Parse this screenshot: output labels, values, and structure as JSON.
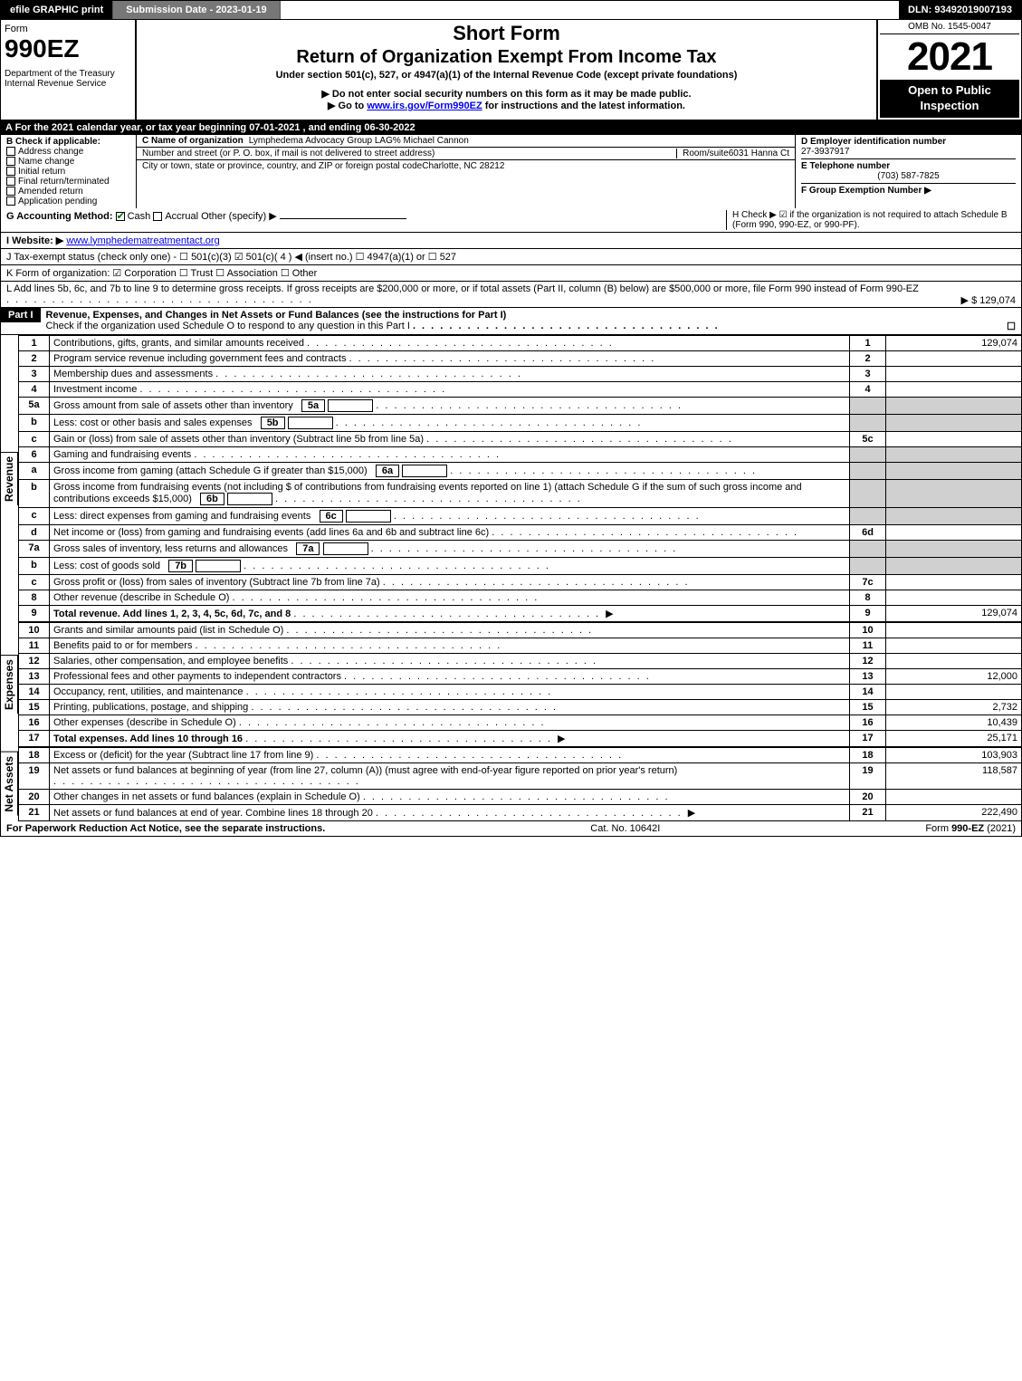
{
  "topbar": {
    "efile": "efile GRAPHIC print",
    "submission": "Submission Date - 2023-01-19",
    "dln": "DLN: 93492019007193"
  },
  "header": {
    "form_label": "Form",
    "form_number": "990EZ",
    "dept": "Department of the Treasury\nInternal Revenue Service",
    "title1": "Short Form",
    "title2": "Return of Organization Exempt From Income Tax",
    "subtitle": "Under section 501(c), 527, or 4947(a)(1) of the Internal Revenue Code (except private foundations)",
    "warn": "▶ Do not enter social security numbers on this form as it may be made public.",
    "goto_pre": "▶ Go to ",
    "goto_link": "www.irs.gov/Form990EZ",
    "goto_post": " for instructions and the latest information.",
    "omb": "OMB No. 1545-0047",
    "year": "2021",
    "inspection": "Open to Public Inspection"
  },
  "lineA": "A  For the 2021 calendar year, or tax year beginning 07-01-2021 , and ending 06-30-2022",
  "boxB": {
    "title": "B  Check if applicable:",
    "items": [
      "Address change",
      "Name change",
      "Initial return",
      "Final return/terminated",
      "Amended return",
      "Application pending"
    ]
  },
  "boxC": {
    "name_lbl": "C Name of organization",
    "name": "Lymphedema Advocacy Group LAG",
    "co": "% Michael Cannon",
    "street_lbl": "Number and street (or P. O. box, if mail is not delivered to street address)",
    "room_lbl": "Room/suite",
    "street": "6031 Hanna Ct",
    "city_lbl": "City or town, state or province, country, and ZIP or foreign postal code",
    "city": "Charlotte, NC  28212"
  },
  "boxD": {
    "ein_lbl": "D Employer identification number",
    "ein": "27-3937917",
    "phone_lbl": "E Telephone number",
    "phone": "(703) 587-7825",
    "group_lbl": "F Group Exemption Number  ▶"
  },
  "lineG": {
    "label": "G Accounting Method:",
    "cash": "Cash",
    "accrual": "Accrual",
    "other": "Other (specify) ▶"
  },
  "lineH": "H  Check ▶ ☑ if the organization is not required to attach Schedule B (Form 990, 990-EZ, or 990-PF).",
  "lineI": {
    "label": "I Website: ▶",
    "site": "www.lymphedematreatmentact.org"
  },
  "lineJ": "J Tax-exempt status (check only one) - ☐ 501(c)(3)  ☑ 501(c)( 4 ) ◀ (insert no.)  ☐ 4947(a)(1) or  ☐ 527",
  "lineK": "K Form of organization:  ☑ Corporation  ☐ Trust  ☐ Association  ☐ Other",
  "lineL": {
    "text": "L Add lines 5b, 6c, and 7b to line 9 to determine gross receipts. If gross receipts are $200,000 or more, or if total assets (Part II, column (B) below) are $500,000 or more, file Form 990 instead of Form 990-EZ",
    "amount": "▶ $ 129,074"
  },
  "partI": {
    "label": "Part I",
    "title": "Revenue, Expenses, and Changes in Net Assets or Fund Balances (see the instructions for Part I)",
    "check": "Check if the organization used Schedule O to respond to any question in this Part I",
    "check_val": "☐"
  },
  "sections": {
    "revenue": "Revenue",
    "expenses": "Expenses",
    "netassets": "Net Assets"
  },
  "rows": [
    {
      "n": "1",
      "d": "Contributions, gifts, grants, and similar amounts received",
      "k": "1",
      "v": "129,074"
    },
    {
      "n": "2",
      "d": "Program service revenue including government fees and contracts",
      "k": "2",
      "v": ""
    },
    {
      "n": "3",
      "d": "Membership dues and assessments",
      "k": "3",
      "v": ""
    },
    {
      "n": "4",
      "d": "Investment income",
      "k": "4",
      "v": ""
    },
    {
      "n": "5a",
      "d": "Gross amount from sale of assets other than inventory",
      "sub": "5a",
      "k": "",
      "v": "",
      "shadeKV": true
    },
    {
      "n": "b",
      "d": "Less: cost or other basis and sales expenses",
      "sub": "5b",
      "k": "",
      "v": "",
      "shadeKV": true
    },
    {
      "n": "c",
      "d": "Gain or (loss) from sale of assets other than inventory (Subtract line 5b from line 5a)",
      "k": "5c",
      "v": ""
    },
    {
      "n": "6",
      "d": "Gaming and fundraising events",
      "k": "",
      "v": "",
      "shadeKV": true,
      "noKV": true
    },
    {
      "n": "a",
      "d": "Gross income from gaming (attach Schedule G if greater than $15,000)",
      "sub": "6a",
      "k": "",
      "v": "",
      "shadeKV": true
    },
    {
      "n": "b",
      "d": "Gross income from fundraising events (not including $                    of contributions from fundraising events reported on line 1) (attach Schedule G if the sum of such gross income and contributions exceeds $15,000)",
      "sub": "6b",
      "k": "",
      "v": "",
      "shadeKV": true
    },
    {
      "n": "c",
      "d": "Less: direct expenses from gaming and fundraising events",
      "sub": "6c",
      "k": "",
      "v": "",
      "shadeKV": true
    },
    {
      "n": "d",
      "d": "Net income or (loss) from gaming and fundraising events (add lines 6a and 6b and subtract line 6c)",
      "k": "6d",
      "v": ""
    },
    {
      "n": "7a",
      "d": "Gross sales of inventory, less returns and allowances",
      "sub": "7a",
      "k": "",
      "v": "",
      "shadeKV": true
    },
    {
      "n": "b",
      "d": "Less: cost of goods sold",
      "sub": "7b",
      "k": "",
      "v": "",
      "shadeKV": true
    },
    {
      "n": "c",
      "d": "Gross profit or (loss) from sales of inventory (Subtract line 7b from line 7a)",
      "k": "7c",
      "v": ""
    },
    {
      "n": "8",
      "d": "Other revenue (describe in Schedule O)",
      "k": "8",
      "v": ""
    },
    {
      "n": "9",
      "d": "Total revenue. Add lines 1, 2, 3, 4, 5c, 6d, 7c, and 8",
      "k": "9",
      "v": "129,074",
      "bold": true,
      "arrow": true
    }
  ],
  "exp_rows": [
    {
      "n": "10",
      "d": "Grants and similar amounts paid (list in Schedule O)",
      "k": "10",
      "v": ""
    },
    {
      "n": "11",
      "d": "Benefits paid to or for members",
      "k": "11",
      "v": ""
    },
    {
      "n": "12",
      "d": "Salaries, other compensation, and employee benefits",
      "k": "12",
      "v": ""
    },
    {
      "n": "13",
      "d": "Professional fees and other payments to independent contractors",
      "k": "13",
      "v": "12,000"
    },
    {
      "n": "14",
      "d": "Occupancy, rent, utilities, and maintenance",
      "k": "14",
      "v": ""
    },
    {
      "n": "15",
      "d": "Printing, publications, postage, and shipping",
      "k": "15",
      "v": "2,732"
    },
    {
      "n": "16",
      "d": "Other expenses (describe in Schedule O)",
      "k": "16",
      "v": "10,439"
    },
    {
      "n": "17",
      "d": "Total expenses. Add lines 10 through 16",
      "k": "17",
      "v": "25,171",
      "bold": true,
      "arrow": true
    }
  ],
  "na_rows": [
    {
      "n": "18",
      "d": "Excess or (deficit) for the year (Subtract line 17 from line 9)",
      "k": "18",
      "v": "103,903"
    },
    {
      "n": "19",
      "d": "Net assets or fund balances at beginning of year (from line 27, column (A)) (must agree with end-of-year figure reported on prior year's return)",
      "k": "19",
      "v": "118,587"
    },
    {
      "n": "20",
      "d": "Other changes in net assets or fund balances (explain in Schedule O)",
      "k": "20",
      "v": ""
    },
    {
      "n": "21",
      "d": "Net assets or fund balances at end of year. Combine lines 18 through 20",
      "k": "21",
      "v": "222,490",
      "arrow": true
    }
  ],
  "footer": {
    "left": "For Paperwork Reduction Act Notice, see the separate instructions.",
    "mid": "Cat. No. 10642I",
    "right": "Form 990-EZ (2021)"
  }
}
